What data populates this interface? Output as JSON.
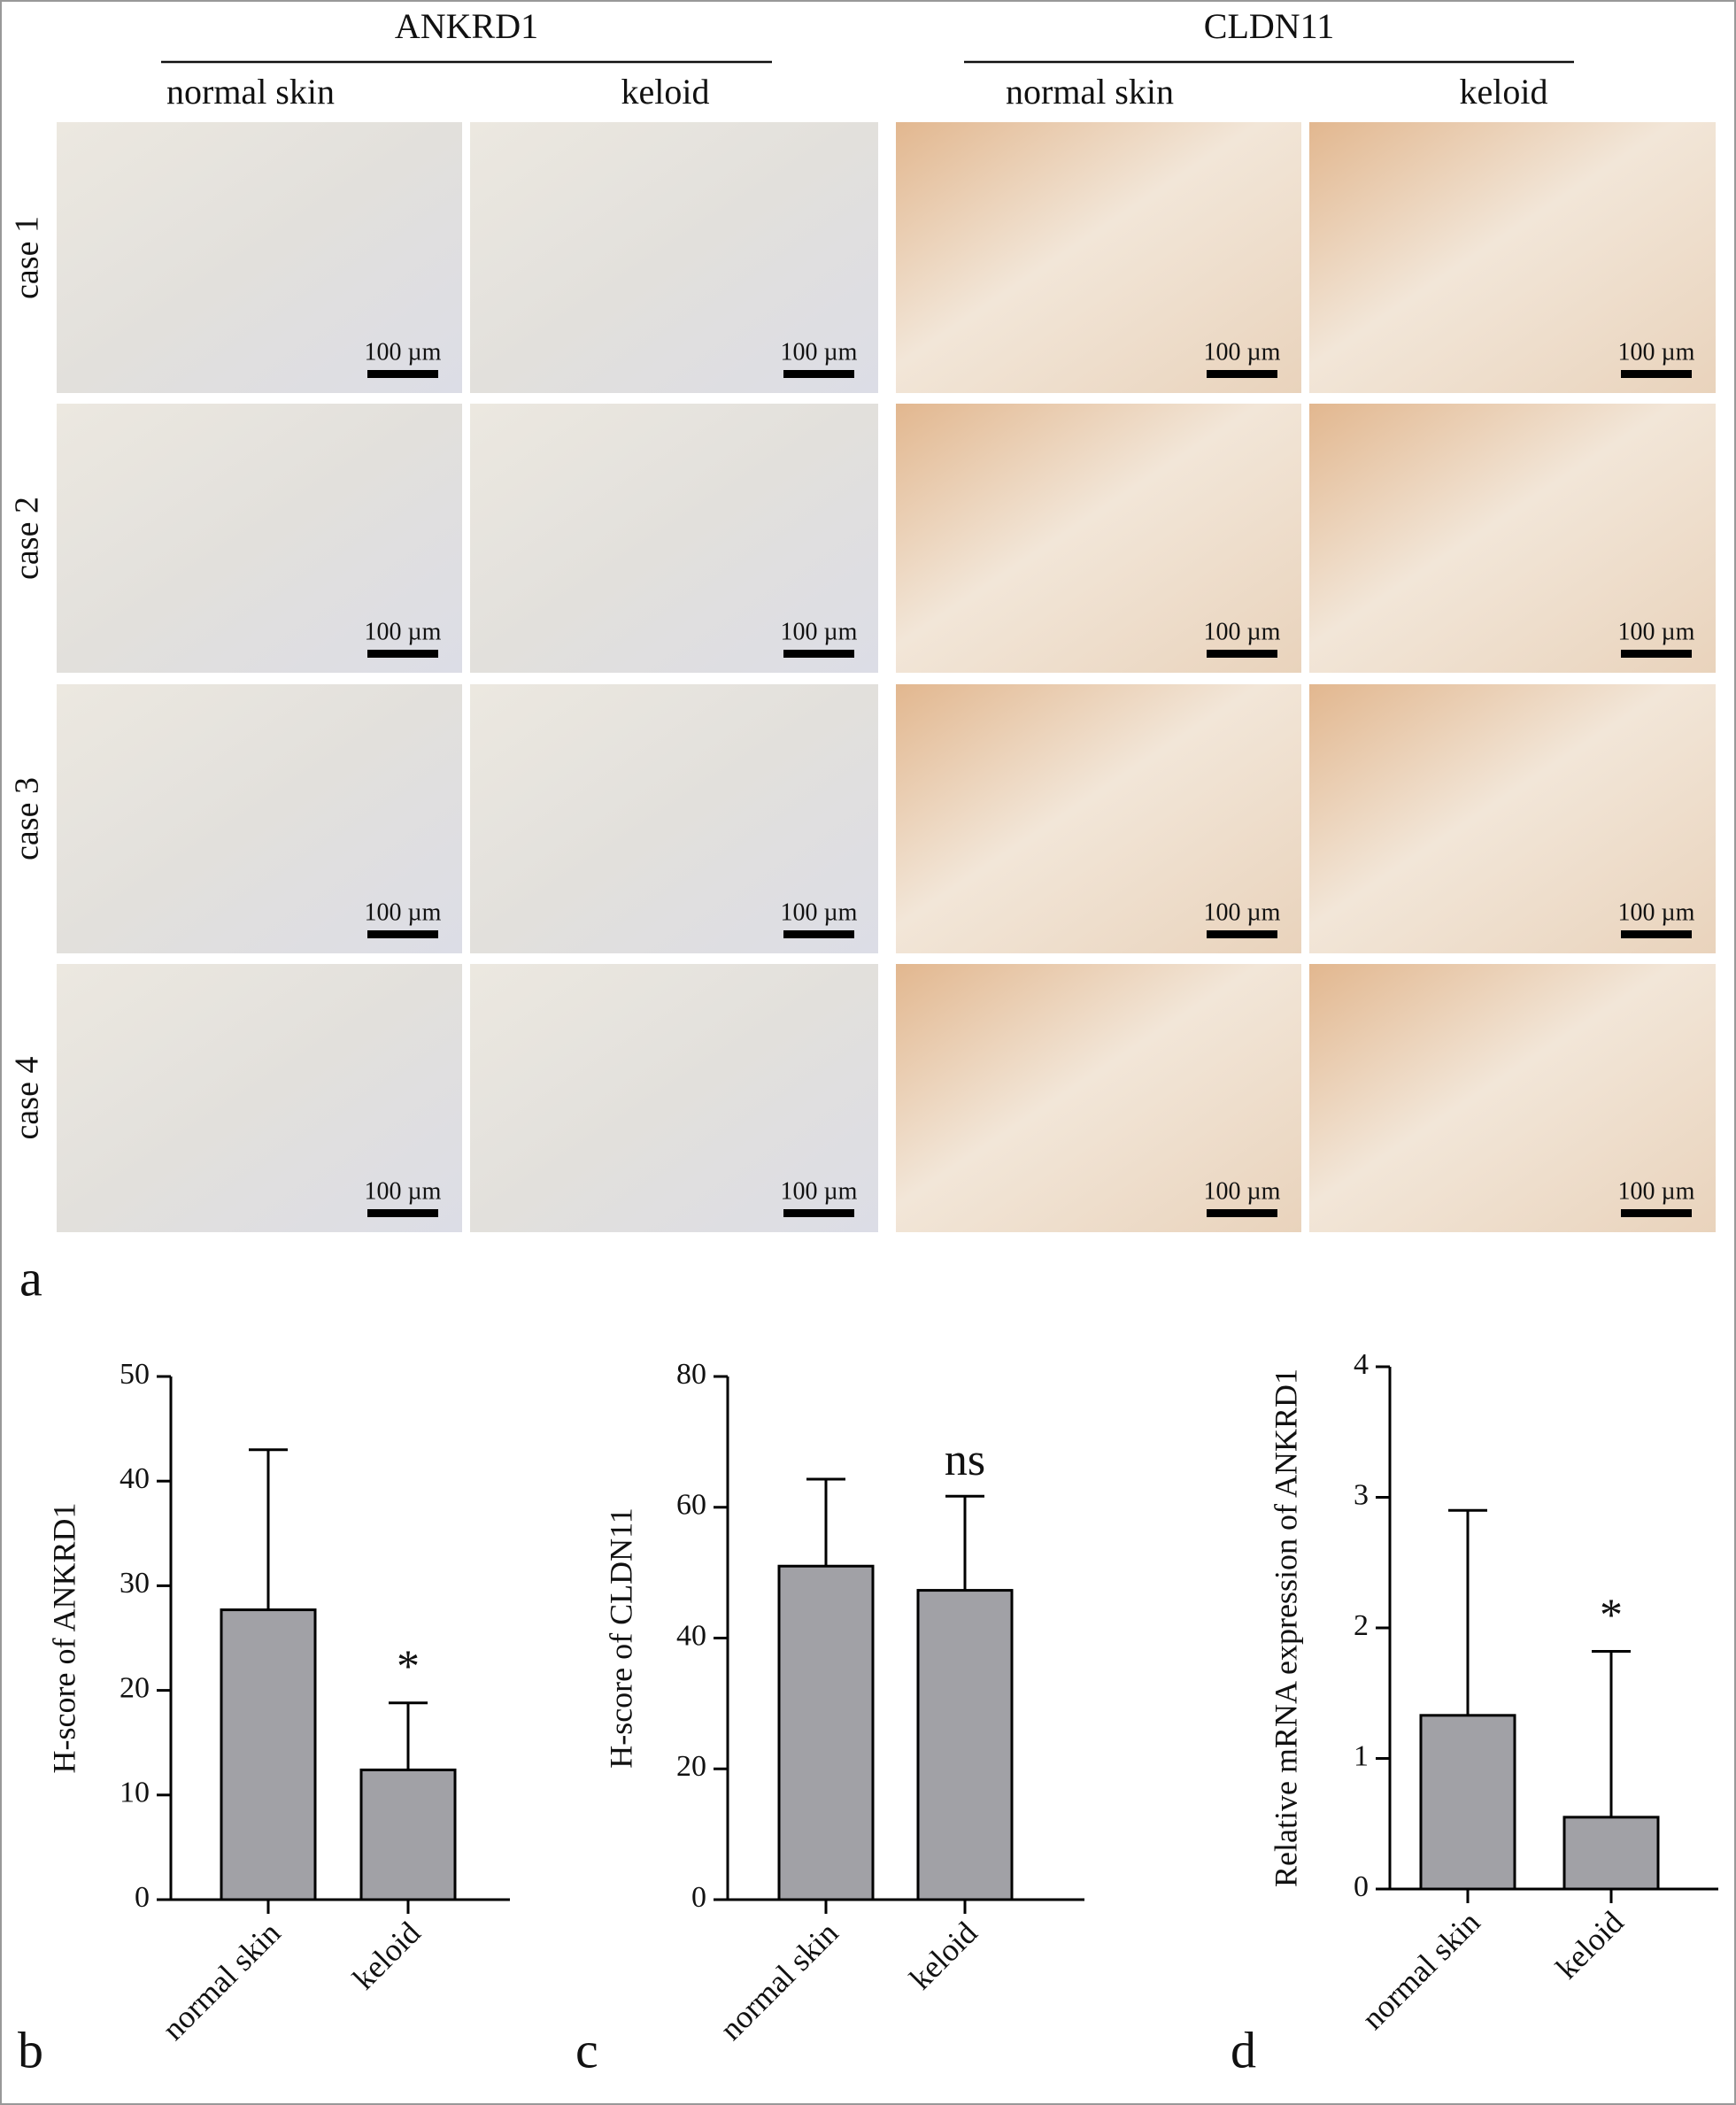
{
  "micrographs": {
    "panel": "a",
    "groups": [
      {
        "title": "ANKRD1",
        "columns": [
          "normal skin",
          "keloid"
        ]
      },
      {
        "title": "CLDN11",
        "columns": [
          "normal skin",
          "keloid"
        ]
      }
    ],
    "rows": [
      "case 1",
      "case 2",
      "case 3",
      "case 4"
    ],
    "scale_bar_label": "100 µm"
  },
  "chart_data": [
    {
      "type": "bar",
      "panel": "b",
      "y_label": "H-score of ANKRD1",
      "categories": [
        "normal skin",
        "keloid"
      ],
      "values": [
        27.7,
        12.4
      ],
      "errors": [
        15.3,
        6.4
      ],
      "value_annotations": [
        null,
        "*"
      ],
      "color": "#a1a1a6",
      "ylim": [
        0,
        50
      ],
      "yticks": [
        0,
        10,
        20,
        30,
        40,
        50
      ]
    },
    {
      "type": "bar",
      "panel": "c",
      "y_label": "H-score of CLDN11",
      "categories": [
        "normal skin",
        "keloid"
      ],
      "values": [
        51,
        47.3
      ],
      "errors": [
        13.3,
        14.4
      ],
      "value_annotations": [
        null,
        "ns"
      ],
      "color": "#a1a1a6",
      "ylim": [
        0,
        80
      ],
      "yticks": [
        0,
        20,
        40,
        60,
        80
      ]
    },
    {
      "type": "bar",
      "panel": "d",
      "y_label": "Relative mRNA expression of ANKRD1",
      "categories": [
        "normal skin",
        "keloid"
      ],
      "values": [
        1.33,
        0.55
      ],
      "errors": [
        1.57,
        1.27
      ],
      "value_annotations": [
        null,
        "*"
      ],
      "color": "#a1a1a6",
      "ylim": [
        0,
        4
      ],
      "yticks": [
        0,
        1,
        2,
        3,
        4
      ]
    }
  ]
}
